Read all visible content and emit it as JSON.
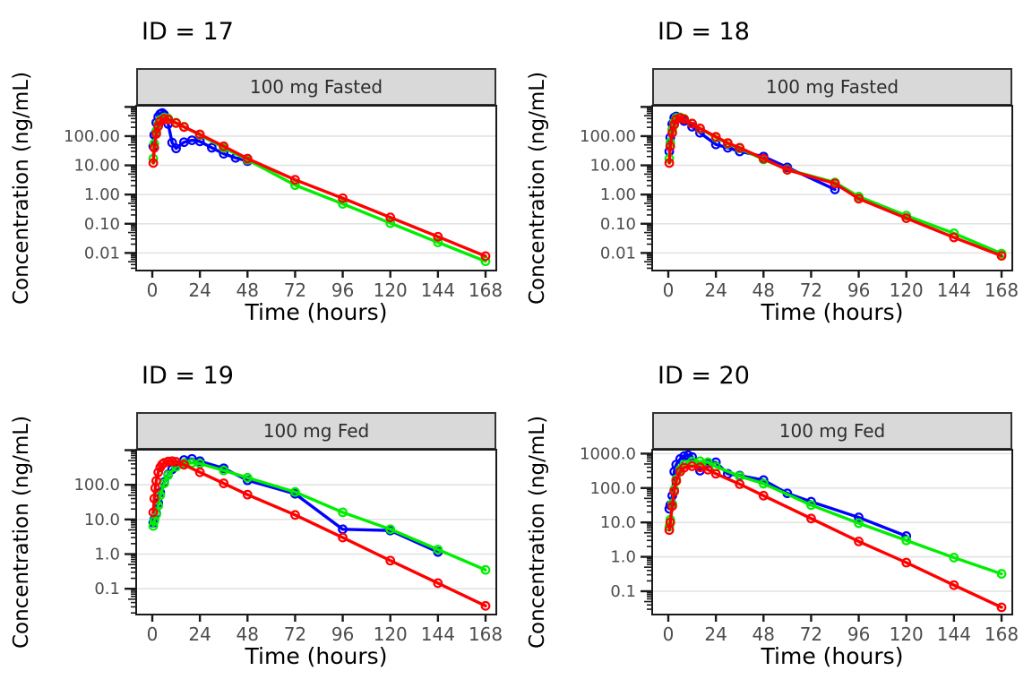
{
  "figure": {
    "background_color": "#FFFFFF",
    "strip_background_color": "#D9D9D9",
    "gridline_color": "#E3E3E3",
    "tick_label_color": "#4D4D4D",
    "axis_color": "#1A1A1A"
  },
  "chart_data": {
    "type": "line",
    "layout": "2x2-facet-grid",
    "yscale": "log10",
    "grid": "horizontal-major-only",
    "legend": "none",
    "x_ticks": [
      0,
      24,
      48,
      72,
      96,
      120,
      144,
      168
    ],
    "panels": [
      {
        "title": "ID = 17",
        "strip_label": "100 mg Fasted",
        "xlabel": "Time (hours)",
        "ylabel": "Concentration (ng/mL)",
        "xlim": [
          0,
          168
        ],
        "ylim": [
          0.0025,
          1100
        ],
        "ytick_values": [
          100,
          10,
          1,
          0.1,
          0.01
        ],
        "ytick_labels": [
          "100.00",
          "10.00",
          "1.00",
          "0.10",
          "0.01"
        ],
        "series": [
          {
            "name": "blue",
            "color": "#0000FF",
            "x": [
              0.5,
              1,
              2,
              3,
              4,
              5,
              6,
              8,
              10,
              12,
              16,
              20,
              24,
              30,
              36,
              42,
              48
            ],
            "y": [
              45,
              110,
              290,
              460,
              570,
              620,
              540,
              260,
              60,
              38,
              62,
              72,
              66,
              40,
              25,
              18,
              14
            ]
          },
          {
            "name": "green",
            "color": "#00EE00",
            "x": [
              0.5,
              1,
              2,
              3,
              4,
              6,
              8,
              12,
              16,
              24,
              36,
              48,
              72,
              96,
              120,
              144,
              168
            ],
            "y": [
              17,
              55,
              150,
              260,
              360,
              430,
              400,
              290,
              210,
              110,
              40,
              15.5,
              2.1,
              0.48,
              0.105,
              0.023,
              0.0052
            ]
          },
          {
            "name": "red",
            "color": "#FF0000",
            "x": [
              0.5,
              1,
              2,
              3,
              4,
              6,
              8,
              12,
              16,
              24,
              36,
              48,
              72,
              96,
              120,
              144,
              168
            ],
            "y": [
              12,
              40,
              120,
              220,
              320,
              390,
              370,
              280,
              205,
              115,
              45,
              17,
              3.2,
              0.75,
              0.165,
              0.036,
              0.0078
            ]
          }
        ]
      },
      {
        "title": "ID = 18",
        "strip_label": "100 mg Fasted",
        "xlabel": "Time (hours)",
        "ylabel": "Concentration (ng/mL)",
        "xlim": [
          0,
          168
        ],
        "ylim": [
          0.0025,
          1100
        ],
        "ytick_values": [
          100,
          10,
          1,
          0.1,
          0.01
        ],
        "ytick_labels": [
          "100.00",
          "10.00",
          "1.00",
          "0.10",
          "0.01"
        ],
        "series": [
          {
            "name": "blue",
            "color": "#0000FF",
            "x": [
              0.5,
              1,
              2,
              3,
              4,
              6,
              8,
              12,
              16,
              24,
              30,
              36,
              48,
              60,
              84
            ],
            "y": [
              30,
              90,
              260,
              430,
              470,
              420,
              330,
              210,
              130,
              52,
              40,
              30,
              20,
              8.5,
              1.5
            ]
          },
          {
            "name": "green",
            "color": "#00EE00",
            "x": [
              0.5,
              1,
              2,
              3,
              4,
              6,
              8,
              12,
              16,
              24,
              30,
              36,
              48,
              60,
              84,
              96,
              120,
              144,
              168
            ],
            "y": [
              17,
              60,
              170,
              300,
              420,
              440,
              390,
              270,
              180,
              90,
              55,
              38,
              16,
              7.2,
              2.6,
              0.85,
              0.19,
              0.047,
              0.0095
            ]
          },
          {
            "name": "red",
            "color": "#FF0000",
            "x": [
              0.5,
              1,
              2,
              3,
              4,
              6,
              8,
              12,
              16,
              24,
              30,
              36,
              48,
              60,
              84,
              96,
              120,
              144,
              168
            ],
            "y": [
              12,
              45,
              130,
              250,
              370,
              420,
              380,
              270,
              185,
              95,
              58,
              40,
              17,
              7.0,
              2.4,
              0.72,
              0.155,
              0.034,
              0.008
            ]
          }
        ]
      },
      {
        "title": "ID = 19",
        "strip_label": "100 mg Fed",
        "xlabel": "Time (hours)",
        "ylabel": "Concentration (ng/mL)",
        "xlim": [
          0,
          168
        ],
        "ylim": [
          0.018,
          1030
        ],
        "ytick_values": [
          100,
          10,
          1,
          0.1
        ],
        "ytick_labels": [
          "100.0",
          "10.0",
          "1.0",
          "0.1"
        ],
        "series": [
          {
            "name": "blue",
            "color": "#0000FF",
            "x": [
              0.5,
              1,
              2,
              3,
              4,
              6,
              8,
              10,
              12,
              16,
              20,
              24,
              36,
              48,
              72,
              96,
              120,
              144
            ],
            "y": [
              8,
              10,
              15,
              30,
              60,
              120,
              200,
              280,
              380,
              520,
              560,
              480,
              300,
              135,
              55,
              5.2,
              4.8,
              1.15
            ]
          },
          {
            "name": "green",
            "color": "#00EE00",
            "x": [
              0.5,
              1,
              2,
              3,
              4,
              6,
              8,
              12,
              16,
              20,
              24,
              36,
              48,
              72,
              96,
              120,
              144,
              168
            ],
            "y": [
              6.5,
              9,
              14,
              25,
              50,
              110,
              190,
              330,
              420,
              430,
              410,
              260,
              160,
              62,
              16,
              5.2,
              1.35,
              0.35
            ]
          },
          {
            "name": "red",
            "color": "#FF0000",
            "x": [
              0.5,
              1,
              1.5,
              2,
              3,
              4,
              5,
              6,
              8,
              10,
              12,
              16,
              24,
              36,
              48,
              72,
              96,
              120,
              144,
              168
            ],
            "y": [
              16,
              40,
              80,
              130,
              230,
              320,
              390,
              430,
              470,
              480,
              460,
              380,
              230,
              110,
              52,
              13.5,
              3.0,
              0.65,
              0.145,
              0.032
            ]
          }
        ]
      },
      {
        "title": "ID = 20",
        "strip_label": "100 mg Fed",
        "xlabel": "Time (hours)",
        "ylabel": "Concentration (ng/mL)",
        "xlim": [
          0,
          168
        ],
        "ylim": [
          0.021,
          1300
        ],
        "ytick_values": [
          1000,
          100,
          10,
          1,
          0.1
        ],
        "ytick_labels": [
          "1000.0",
          "100.0",
          "10.0",
          "1.0",
          "0.1"
        ],
        "series": [
          {
            "name": "blue",
            "color": "#0000FF",
            "x": [
              0.5,
              1,
              2,
              3,
              4,
              6,
              8,
              10,
              12,
              16,
              20,
              24,
              30,
              36,
              48,
              60,
              72,
              96,
              120
            ],
            "y": [
              25,
              32,
              60,
              300,
              480,
              700,
              850,
              900,
              800,
              320,
              520,
              560,
              260,
              230,
              170,
              70,
              40,
              14,
              4
            ]
          },
          {
            "name": "green",
            "color": "#00EE00",
            "x": [
              0.5,
              1,
              2,
              3,
              4,
              6,
              8,
              12,
              16,
              20,
              24,
              36,
              48,
              72,
              96,
              120,
              144,
              168
            ],
            "y": [
              7.5,
              12,
              35,
              90,
              180,
              350,
              480,
              590,
              600,
              560,
              420,
              220,
              135,
              32,
              9.5,
              3.0,
              0.95,
              0.32
            ]
          },
          {
            "name": "red",
            "color": "#FF0000",
            "x": [
              0.5,
              1,
              2,
              3,
              4,
              6,
              8,
              12,
              16,
              20,
              24,
              36,
              48,
              72,
              96,
              120,
              144,
              168
            ],
            "y": [
              6,
              10,
              30,
              80,
              160,
              300,
              390,
              430,
              400,
              340,
              260,
              130,
              60,
              13,
              2.8,
              0.68,
              0.15,
              0.034
            ]
          }
        ]
      }
    ]
  }
}
